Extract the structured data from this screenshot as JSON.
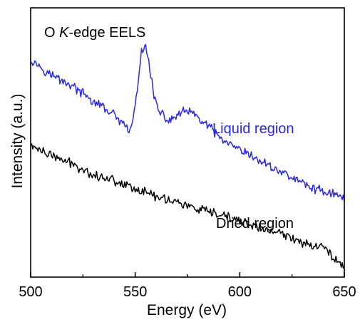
{
  "chart_data": {
    "type": "line",
    "title": {
      "prefix": "O ",
      "italic": "K",
      "suffix": "-edge  EELS"
    },
    "xlabel": "Energy  (eV)",
    "ylabel": "Intensity  (a.u.)",
    "xlim": [
      500,
      650
    ],
    "ylim": [
      0,
      1
    ],
    "y_tick_labels_shown": false,
    "x_ticks": [
      500,
      550,
      600,
      650
    ],
    "x_tick_labels": [
      "500",
      "550",
      "600",
      "650"
    ],
    "x_minor_ticks": [
      525,
      575,
      625
    ],
    "grid": false,
    "legend": "none",
    "series": [
      {
        "name": "Liquid region",
        "color": "#2a2ae0",
        "x": [
          500,
          505,
          510,
          515,
          520,
          525,
          530,
          535,
          540,
          545,
          547,
          549,
          551,
          553,
          555,
          557,
          559,
          561,
          563,
          566,
          570,
          575,
          580,
          585,
          590,
          595,
          600,
          605,
          610,
          615,
          620,
          625,
          630,
          635,
          640,
          645,
          650
        ],
        "values": [
          0.81,
          0.78,
          0.75,
          0.73,
          0.71,
          0.68,
          0.65,
          0.63,
          0.6,
          0.56,
          0.54,
          0.58,
          0.7,
          0.83,
          0.86,
          0.78,
          0.67,
          0.62,
          0.6,
          0.58,
          0.6,
          0.62,
          0.59,
          0.56,
          0.52,
          0.49,
          0.47,
          0.45,
          0.43,
          0.41,
          0.39,
          0.37,
          0.35,
          0.33,
          0.32,
          0.31,
          0.29
        ]
      },
      {
        "name": "Dried region",
        "color": "#000000",
        "x": [
          500,
          505,
          510,
          520,
          530,
          540,
          550,
          560,
          570,
          580,
          590,
          600,
          610,
          620,
          630,
          640,
          650
        ],
        "values": [
          0.49,
          0.47,
          0.45,
          0.42,
          0.38,
          0.36,
          0.33,
          0.3,
          0.28,
          0.25,
          0.23,
          0.21,
          0.18,
          0.16,
          0.13,
          0.11,
          0.04
        ]
      }
    ]
  }
}
